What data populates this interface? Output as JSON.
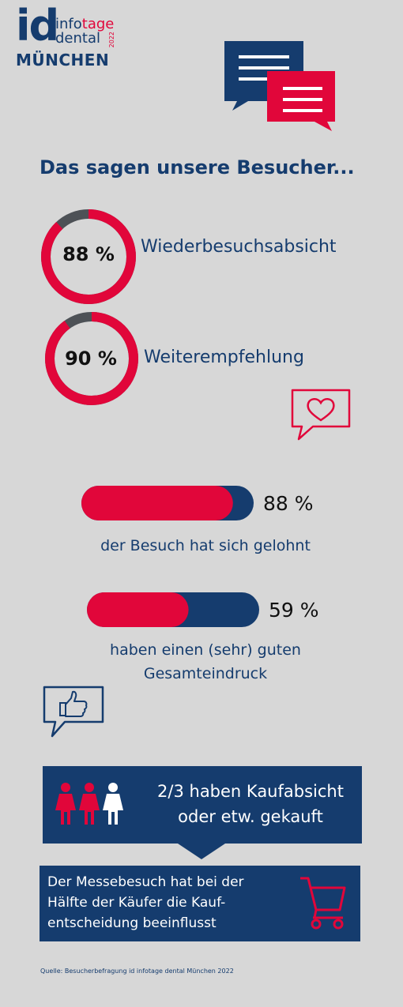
{
  "logo": {
    "id": "id",
    "info_a": "info",
    "info_b": "tage",
    "dental": "dental",
    "year": "2022",
    "city": "MÜNCHEN"
  },
  "headline": "Das sagen unsere Besucher...",
  "stats": [
    {
      "value_text": "88 %",
      "label": "Wiederbesuchsabsicht",
      "fraction": 0.88
    },
    {
      "value_text": "90 %",
      "label": "Weiterempfehlung",
      "fraction": 0.9
    }
  ],
  "bars": [
    {
      "value_text": "88 %",
      "label_line1": "der Besuch hat sich gelohnt",
      "label_line2": "",
      "fraction": 0.88
    },
    {
      "value_text": "59 %",
      "label_line1": "haben einen (sehr) guten",
      "label_line2": "Gesamteindruck",
      "fraction": 0.59
    }
  ],
  "banner": {
    "line1": "2/3 haben Kaufabsicht",
    "line2": "oder etw. gekauft"
  },
  "box": {
    "line1": "Der Messebesuch hat bei der",
    "line2": "Hälfte der Käufer die Kauf-",
    "line3": "entscheidung beeinflusst"
  },
  "source": "Quelle: Besucherbefragung id infotage dental München 2022",
  "colors": {
    "navy": "#153c6e",
    "red": "#e1063a",
    "gray": "#4d5156",
    "background": "#d7d7d7"
  },
  "icons": [
    "speech-bubbles-icon",
    "heart-speech-icon",
    "thumbs-up-speech-icon",
    "people-icon",
    "shopping-cart-icon"
  ]
}
